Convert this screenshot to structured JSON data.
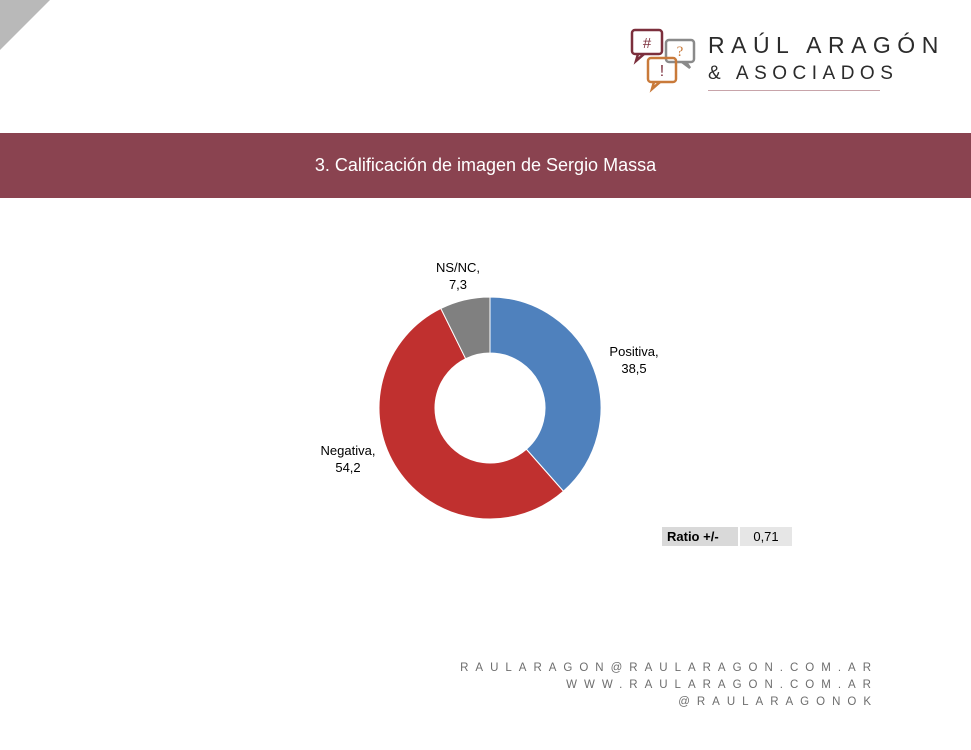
{
  "brand": {
    "name_line1": "RAÚL ARAGÓN",
    "name_line2": "& ASOCIADOS",
    "icon_glyphs": {
      "hash": "#",
      "question": "?",
      "exclaim": "!"
    },
    "colors": {
      "bubble_dark": "#7c2f3c",
      "bubble_gray": "#8a8a8a",
      "bubble_orange": "#c97a3a"
    }
  },
  "header": {
    "title": "3. Calificación de imagen de Sergio Massa"
  },
  "chart_data": {
    "type": "pie",
    "variant": "donut",
    "categories": [
      "Positiva",
      "Negativa",
      "NS/NC"
    ],
    "values": [
      38.5,
      54.2,
      7.3
    ],
    "value_labels": [
      "38,5",
      "54,2",
      "7,3"
    ],
    "colors": [
      "#4f81bd",
      "#c0302f",
      "#808080"
    ],
    "start_angle_deg": 0,
    "direction": "clockwise"
  },
  "ratio": {
    "label": "Ratio +/-",
    "value": "0,71"
  },
  "footer": {
    "email": "RAULARAGON@RAULARAGON.COM.AR",
    "website": "WWW.RAULARAGON.COM.AR",
    "handle": "@RAULARAGONOK"
  }
}
